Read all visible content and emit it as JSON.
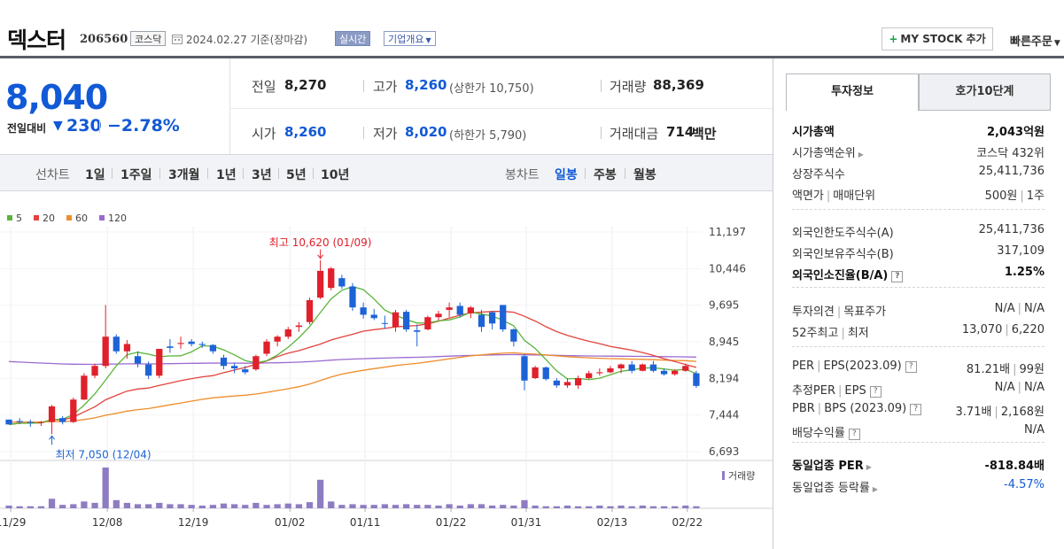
{
  "header": {
    "name": "덱스터",
    "code": "206560",
    "market": "코스닥",
    "date_text": "2024.02.27  기준(장마감)",
    "realtime": "실시간",
    "company": "기업개요",
    "mystock": "MY STOCK 추가",
    "quick_order": "빠른주문"
  },
  "price": {
    "current": "8,040",
    "change_label": "전일대비",
    "change": "230",
    "change_pct": "−2.78%",
    "direction": "down"
  },
  "quote": {
    "prev_label": "전일",
    "prev": "8,270",
    "high_label": "고가",
    "high": "8,260",
    "upper_limit": "(상한가 10,750)",
    "volume_label": "거래량",
    "volume": "88,369",
    "open_label": "시가",
    "open": "8,260",
    "low_label": "저가",
    "low": "8,020",
    "lower_limit": "(하한가 5,790)",
    "amount_label": "거래대금",
    "amount": "714",
    "amount_unit": "백만"
  },
  "period_bar": {
    "line_label": "선차트",
    "line_opts": [
      "1일",
      "1주일",
      "3개월",
      "1년",
      "3년",
      "5년",
      "10년"
    ],
    "candle_label": "봉차트",
    "candle_opts": [
      "일봉",
      "주봉",
      "월봉"
    ],
    "candle_selected": "일봉"
  },
  "chart_data": {
    "type": "candlestick",
    "legend": [
      {
        "name": "5",
        "color": "#5ab53a"
      },
      {
        "name": "20",
        "color": "#e2433d"
      },
      {
        "name": "60",
        "color": "#f08c2a"
      },
      {
        "name": "120",
        "color": "#9a6ad0"
      }
    ],
    "y_ticks": [
      "11,197",
      "10,446",
      "9,695",
      "8,945",
      "8,194",
      "7,444",
      "6,693"
    ],
    "ylim": [
      6693,
      11197
    ],
    "x_ticks": [
      "11/29",
      "12/08",
      "12/19",
      "01/02",
      "01/11",
      "01/22",
      "01/31",
      "02/13",
      "02/22"
    ],
    "max_label": "최고 10,620 (01/09)",
    "min_label": "최저 7,050 (12/04)",
    "volume_label": "거래량",
    "candles": [
      [
        7350,
        7350,
        7280,
        7250
      ],
      [
        7320,
        7380,
        7260,
        7300
      ],
      [
        7300,
        7350,
        7200,
        7280
      ],
      [
        7290,
        7320,
        7220,
        7300
      ],
      [
        7300,
        7650,
        7050,
        7620
      ],
      [
        7380,
        7420,
        7250,
        7300
      ],
      [
        7300,
        7800,
        7280,
        7760
      ],
      [
        7760,
        8300,
        7750,
        8250
      ],
      [
        8250,
        8500,
        8200,
        8450
      ],
      [
        8450,
        9700,
        8400,
        9050
      ],
      [
        9050,
        9100,
        8700,
        8750
      ],
      [
        8750,
        8980,
        8600,
        8900
      ],
      [
        8650,
        8750,
        8420,
        8500
      ],
      [
        8480,
        8540,
        8180,
        8250
      ],
      [
        8250,
        8800,
        8200,
        8800
      ],
      [
        8850,
        9000,
        8720,
        8820
      ],
      [
        8900,
        9050,
        8800,
        8920
      ],
      [
        8950,
        9000,
        8850,
        8900
      ],
      [
        8900,
        8950,
        8820,
        8880
      ],
      [
        8880,
        8900,
        8700,
        8750
      ],
      [
        8620,
        8680,
        8380,
        8450
      ],
      [
        8450,
        8520,
        8300,
        8400
      ],
      [
        8380,
        8450,
        8280,
        8320
      ],
      [
        8380,
        8680,
        8350,
        8650
      ],
      [
        8700,
        9000,
        8650,
        8950
      ],
      [
        8950,
        9080,
        8850,
        9050
      ],
      [
        9050,
        9250,
        9000,
        9200
      ],
      [
        9250,
        9350,
        9150,
        9280
      ],
      [
        9350,
        9850,
        9300,
        9800
      ],
      [
        9850,
        10620,
        9820,
        10400
      ],
      [
        10050,
        10480,
        10000,
        10450
      ],
      [
        10250,
        10320,
        10030,
        10080
      ],
      [
        10080,
        10150,
        9580,
        9650
      ],
      [
        9650,
        9750,
        9420,
        9500
      ],
      [
        9500,
        9620,
        9390,
        9430
      ],
      [
        9330,
        9480,
        9210,
        9320
      ],
      [
        9250,
        9600,
        9150,
        9550
      ],
      [
        9560,
        9600,
        9150,
        9200
      ],
      [
        9180,
        9300,
        8850,
        9150
      ],
      [
        9200,
        9480,
        9180,
        9450
      ],
      [
        9450,
        9580,
        9380,
        9520
      ],
      [
        9600,
        9750,
        9450,
        9650
      ],
      [
        9680,
        9750,
        9450,
        9500
      ],
      [
        9530,
        9680,
        9430,
        9650
      ],
      [
        9500,
        9600,
        9150,
        9250
      ],
      [
        9550,
        9580,
        9200,
        9320
      ],
      [
        9700,
        9700,
        9150,
        9200
      ],
      [
        9200,
        9220,
        8850,
        8950
      ],
      [
        8650,
        8680,
        7950,
        8150
      ],
      [
        8200,
        8450,
        8180,
        8420
      ],
      [
        8420,
        8440,
        8150,
        8180
      ],
      [
        8150,
        8200,
        8000,
        8050
      ],
      [
        8050,
        8200,
        8000,
        8120
      ],
      [
        8050,
        8250,
        7980,
        8200
      ],
      [
        8200,
        8350,
        8180,
        8300
      ],
      [
        8300,
        8400,
        8250,
        8320
      ],
      [
        8320,
        8450,
        8300,
        8400
      ],
      [
        8400,
        8500,
        8300,
        8480
      ],
      [
        8480,
        8550,
        8300,
        8350
      ],
      [
        8350,
        8500,
        8340,
        8480
      ],
      [
        8480,
        8550,
        8320,
        8350
      ],
      [
        8350,
        8400,
        8250,
        8280
      ],
      [
        8280,
        8380,
        8250,
        8350
      ],
      [
        8350,
        8500,
        8330,
        8450
      ],
      [
        8300,
        8350,
        8000,
        8040
      ]
    ],
    "volumes": [
      4,
      3,
      3,
      3,
      14,
      5,
      6,
      10,
      8,
      60,
      12,
      8,
      6,
      6,
      8,
      6,
      6,
      5,
      4,
      5,
      7,
      6,
      5,
      8,
      5,
      6,
      7,
      6,
      9,
      42,
      10,
      5,
      6,
      5,
      5,
      6,
      5,
      6,
      5,
      5,
      4,
      6,
      4,
      6,
      6,
      4,
      5,
      4,
      12,
      4,
      3,
      3,
      4,
      3,
      3,
      4,
      3,
      4,
      3,
      4,
      3,
      3,
      3,
      4,
      3
    ]
  },
  "side": {
    "tab_active": "투자정보",
    "tab_other": "호가10단계",
    "g1": [
      {
        "k": "시가총액",
        "v": "2,043억원"
      },
      {
        "k": "시가총액순위",
        "v": "코스닥 432위"
      },
      {
        "k": "상장주식수",
        "v": "25,411,736"
      },
      {
        "k1": "액면가",
        "k2": "매매단위",
        "v1": "500원",
        "v2": "1주"
      }
    ],
    "g2": [
      {
        "k": "외국인한도주식수(A)",
        "v": "25,411,736"
      },
      {
        "k": "외국인보유주식수(B)",
        "v": "317,109"
      },
      {
        "k": "외국인소진율(B/A)",
        "v": "1.25%"
      }
    ],
    "g3": [
      {
        "k1": "투자의견",
        "k2": "목표주가",
        "v1": "N/A",
        "v2": "N/A"
      },
      {
        "k1": "52주최고",
        "k2": "최저",
        "v1": "13,070",
        "v2": "6,220"
      }
    ],
    "g4": [
      {
        "k1": "PER",
        "k2": "EPS(2023.09)",
        "v1": "81.21배",
        "v2": "99원"
      },
      {
        "k1": "추정PER",
        "k2": "EPS",
        "v1": "N/A",
        "v2": "N/A"
      },
      {
        "k1": "PBR",
        "k2": "BPS (2023.09)",
        "v1": "3.71배",
        "v2": "2,168원"
      },
      {
        "k": "배당수익률",
        "v": "N/A"
      }
    ],
    "g5": [
      {
        "k": "동일업종 PER",
        "v": "-818.84배"
      },
      {
        "k": "동일업종 등락률",
        "v": "-4.57%"
      }
    ]
  }
}
